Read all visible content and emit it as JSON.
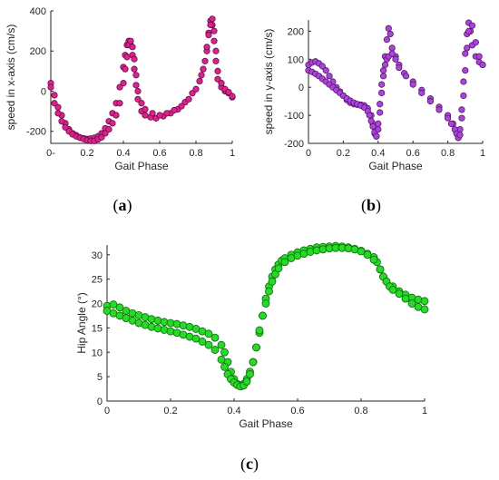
{
  "chart_data": [
    {
      "id": "a",
      "type": "scatter",
      "caption": "a",
      "xlabel": "Gait Phase",
      "ylabel": "speed in x-axis (cm/s)",
      "xlim": [
        0,
        1
      ],
      "ylim": [
        -260,
        400
      ],
      "xticks": [
        0,
        0.2,
        0.4,
        0.6,
        0.8,
        1
      ],
      "xtick_labels": [
        "0-",
        "0.2",
        "0.4",
        "0.6",
        "0.8",
        "1"
      ],
      "yticks": [
        -200,
        0,
        200,
        400
      ],
      "ytick_labels": [
        "-200",
        "0",
        "200",
        "400"
      ],
      "color": "#e0208f",
      "series": [
        {
          "x": [
            0.0,
            0.02,
            0.04,
            0.06,
            0.08,
            0.1,
            0.12,
            0.14,
            0.16,
            0.18,
            0.2,
            0.22,
            0.24,
            0.26,
            0.28,
            0.3,
            0.32,
            0.34,
            0.36,
            0.38,
            0.4,
            0.41,
            0.42,
            0.43,
            0.44,
            0.45,
            0.46,
            0.47,
            0.48,
            0.5,
            0.52,
            0.55,
            0.58,
            0.62,
            0.66,
            0.7,
            0.74,
            0.78,
            0.82,
            0.84,
            0.86,
            0.87,
            0.88,
            0.89,
            0.9,
            0.91,
            0.92,
            0.94,
            0.96,
            0.98,
            1.0
          ],
          "y": [
            40,
            -20,
            -80,
            -120,
            -160,
            -190,
            -210,
            -220,
            -230,
            -235,
            -238,
            -236,
            -232,
            -225,
            -210,
            -185,
            -150,
            -110,
            -60,
            20,
            120,
            180,
            230,
            250,
            230,
            180,
            110,
            30,
            -40,
            -100,
            -120,
            -130,
            -135,
            -125,
            -110,
            -90,
            -55,
            -10,
            50,
            110,
            200,
            290,
            350,
            330,
            250,
            150,
            60,
            20,
            0,
            -10,
            -30
          ]
        },
        {
          "x": [
            0.0,
            0.02,
            0.04,
            0.06,
            0.08,
            0.1,
            0.12,
            0.14,
            0.16,
            0.18,
            0.2,
            0.22,
            0.24,
            0.26,
            0.28,
            0.3,
            0.32,
            0.34,
            0.36,
            0.38,
            0.4,
            0.41,
            0.42,
            0.43,
            0.44,
            0.45,
            0.46,
            0.47,
            0.48,
            0.5,
            0.52,
            0.56,
            0.6,
            0.64,
            0.68,
            0.72,
            0.76,
            0.8,
            0.83,
            0.85,
            0.86,
            0.87,
            0.88,
            0.89,
            0.9,
            0.91,
            0.92,
            0.94,
            0.96,
            0.98,
            1.0
          ],
          "y": [
            20,
            -60,
            -110,
            -150,
            -180,
            -200,
            -215,
            -225,
            -232,
            -238,
            -245,
            -248,
            -248,
            -240,
            -230,
            -210,
            -190,
            -160,
            -120,
            -60,
            40,
            110,
            170,
            230,
            250,
            220,
            160,
            80,
            0,
            -60,
            -90,
            -110,
            -120,
            -110,
            -95,
            -75,
            -40,
            10,
            80,
            150,
            220,
            280,
            330,
            360,
            300,
            200,
            100,
            40,
            10,
            -5,
            -25
          ]
        }
      ]
    },
    {
      "id": "b",
      "type": "scatter",
      "caption": "b",
      "xlabel": "Gait Phase",
      "ylabel": "speed in y-axis (cm/s)",
      "xlim": [
        0,
        1
      ],
      "ylim": [
        -200,
        240
      ],
      "xticks": [
        0,
        0.2,
        0.4,
        0.6,
        0.8,
        1
      ],
      "xtick_labels": [
        "0",
        "0.2",
        "0.4",
        "0.6",
        "0.8",
        "1"
      ],
      "yticks": [
        -200,
        -100,
        0,
        100,
        200
      ],
      "ytick_labels": [
        "-200",
        "-100",
        "0",
        "100",
        "200"
      ],
      "color": "#b040e0",
      "series": [
        {
          "x": [
            0.0,
            0.02,
            0.04,
            0.06,
            0.08,
            0.1,
            0.12,
            0.14,
            0.16,
            0.18,
            0.2,
            0.22,
            0.24,
            0.26,
            0.28,
            0.3,
            0.32,
            0.34,
            0.36,
            0.37,
            0.38,
            0.39,
            0.4,
            0.41,
            0.42,
            0.43,
            0.44,
            0.45,
            0.46,
            0.47,
            0.48,
            0.5,
            0.52,
            0.55,
            0.6,
            0.65,
            0.7,
            0.75,
            0.8,
            0.83,
            0.85,
            0.86,
            0.87,
            0.88,
            0.89,
            0.9,
            0.91,
            0.92,
            0.93,
            0.94,
            0.96,
            0.98,
            1.0
          ],
          "y": [
            80,
            88,
            92,
            85,
            75,
            60,
            40,
            20,
            0,
            -15,
            -30,
            -45,
            -55,
            -60,
            -62,
            -62,
            -65,
            -75,
            -100,
            -130,
            -165,
            -175,
            -130,
            -60,
            10,
            60,
            110,
            170,
            210,
            190,
            140,
            110,
            80,
            50,
            20,
            -10,
            -40,
            -70,
            -100,
            -130,
            -160,
            -180,
            -150,
            -80,
            20,
            120,
            190,
            230,
            200,
            150,
            110,
            90,
            80
          ]
        },
        {
          "x": [
            0.0,
            0.02,
            0.04,
            0.06,
            0.08,
            0.1,
            0.12,
            0.14,
            0.16,
            0.18,
            0.2,
            0.22,
            0.24,
            0.26,
            0.28,
            0.3,
            0.32,
            0.34,
            0.35,
            0.36,
            0.37,
            0.38,
            0.39,
            0.4,
            0.41,
            0.42,
            0.43,
            0.44,
            0.45,
            0.46,
            0.48,
            0.5,
            0.52,
            0.56,
            0.6,
            0.65,
            0.7,
            0.75,
            0.8,
            0.82,
            0.84,
            0.85,
            0.86,
            0.87,
            0.88,
            0.89,
            0.9,
            0.91,
            0.92,
            0.94,
            0.96,
            0.98,
            1.0
          ],
          "y": [
            60,
            55,
            48,
            40,
            30,
            20,
            10,
            0,
            -10,
            -20,
            -30,
            -40,
            -48,
            -55,
            -60,
            -65,
            -72,
            -85,
            -100,
            -120,
            -140,
            -160,
            -175,
            -150,
            -90,
            -20,
            40,
            80,
            100,
            110,
            120,
            100,
            70,
            40,
            10,
            -20,
            -50,
            -80,
            -110,
            -130,
            -150,
            -165,
            -180,
            -170,
            -110,
            -30,
            60,
            140,
            200,
            220,
            160,
            110,
            80
          ]
        }
      ]
    },
    {
      "id": "c",
      "type": "scatter",
      "caption": "c",
      "xlabel": "Gait Phase",
      "ylabel": "Hip Angle (°)",
      "xlim": [
        0,
        1
      ],
      "ylim": [
        0,
        32
      ],
      "xticks": [
        0,
        0.2,
        0.4,
        0.6,
        0.8,
        1
      ],
      "xtick_labels": [
        "0",
        "0.2",
        "0.4",
        "0.6",
        "0.8",
        "1"
      ],
      "yticks": [
        0,
        5,
        10,
        15,
        20,
        25,
        30
      ],
      "ytick_labels": [
        "0",
        "5",
        "10",
        "15",
        "20",
        "25",
        "30"
      ],
      "color": "#22dd22",
      "series": [
        {
          "x": [
            0.0,
            0.02,
            0.04,
            0.06,
            0.08,
            0.1,
            0.12,
            0.14,
            0.16,
            0.18,
            0.2,
            0.22,
            0.24,
            0.26,
            0.28,
            0.3,
            0.32,
            0.34,
            0.36,
            0.37,
            0.38,
            0.39,
            0.4,
            0.41,
            0.42,
            0.43,
            0.44,
            0.45,
            0.46,
            0.47,
            0.48,
            0.49,
            0.5,
            0.51,
            0.52,
            0.53,
            0.54,
            0.55,
            0.56,
            0.58,
            0.6,
            0.62,
            0.64,
            0.66,
            0.68,
            0.7,
            0.72,
            0.74,
            0.76,
            0.78,
            0.8,
            0.82,
            0.84,
            0.85,
            0.86,
            0.87,
            0.88,
            0.9,
            0.92,
            0.94,
            0.96,
            0.98,
            1.0
          ],
          "y": [
            19.5,
            19.8,
            19.2,
            18.5,
            18.0,
            17.6,
            17.2,
            16.8,
            16.5,
            16.2,
            16.0,
            15.8,
            15.5,
            15.2,
            14.8,
            14.3,
            13.8,
            13.0,
            11.5,
            10.0,
            8.0,
            6.0,
            4.5,
            3.5,
            3.2,
            3.5,
            4.5,
            6.0,
            8.0,
            11.0,
            14.0,
            17.5,
            21.0,
            23.5,
            25.5,
            27.0,
            28.0,
            28.8,
            29.3,
            30.0,
            30.5,
            30.9,
            31.2,
            31.5,
            31.6,
            31.7,
            31.8,
            31.7,
            31.5,
            31.2,
            30.8,
            30.2,
            29.5,
            28.5,
            27.0,
            25.5,
            24.5,
            23.5,
            22.5,
            21.8,
            21.2,
            20.8,
            20.5
          ]
        },
        {
          "x": [
            0.0,
            0.02,
            0.04,
            0.06,
            0.08,
            0.1,
            0.12,
            0.14,
            0.16,
            0.18,
            0.2,
            0.22,
            0.24,
            0.26,
            0.28,
            0.3,
            0.32,
            0.34,
            0.36,
            0.37,
            0.38,
            0.39,
            0.4,
            0.41,
            0.42,
            0.43,
            0.44,
            0.45,
            0.46,
            0.47,
            0.48,
            0.49,
            0.5,
            0.51,
            0.52,
            0.53,
            0.54,
            0.56,
            0.58,
            0.6,
            0.62,
            0.64,
            0.66,
            0.68,
            0.7,
            0.72,
            0.74,
            0.76,
            0.78,
            0.8,
            0.82,
            0.84,
            0.86,
            0.87,
            0.88,
            0.89,
            0.9,
            0.92,
            0.94,
            0.96,
            0.98,
            1.0
          ],
          "y": [
            18.5,
            18.0,
            17.5,
            17.0,
            16.5,
            16.0,
            15.6,
            15.2,
            14.9,
            14.6,
            14.3,
            14.0,
            13.6,
            13.2,
            12.8,
            12.2,
            11.5,
            10.5,
            8.5,
            7.0,
            5.5,
            4.5,
            3.8,
            3.3,
            3.0,
            3.2,
            4.0,
            5.5,
            8.0,
            11.0,
            14.5,
            17.5,
            20.0,
            22.5,
            24.5,
            26.0,
            27.2,
            28.5,
            29.3,
            29.8,
            30.2,
            30.6,
            30.9,
            31.1,
            31.3,
            31.4,
            31.4,
            31.3,
            31.1,
            30.7,
            30.0,
            29.0,
            27.0,
            25.5,
            24.5,
            23.5,
            22.8,
            22.0,
            21.0,
            20.0,
            19.3,
            18.8
          ]
        }
      ]
    }
  ]
}
